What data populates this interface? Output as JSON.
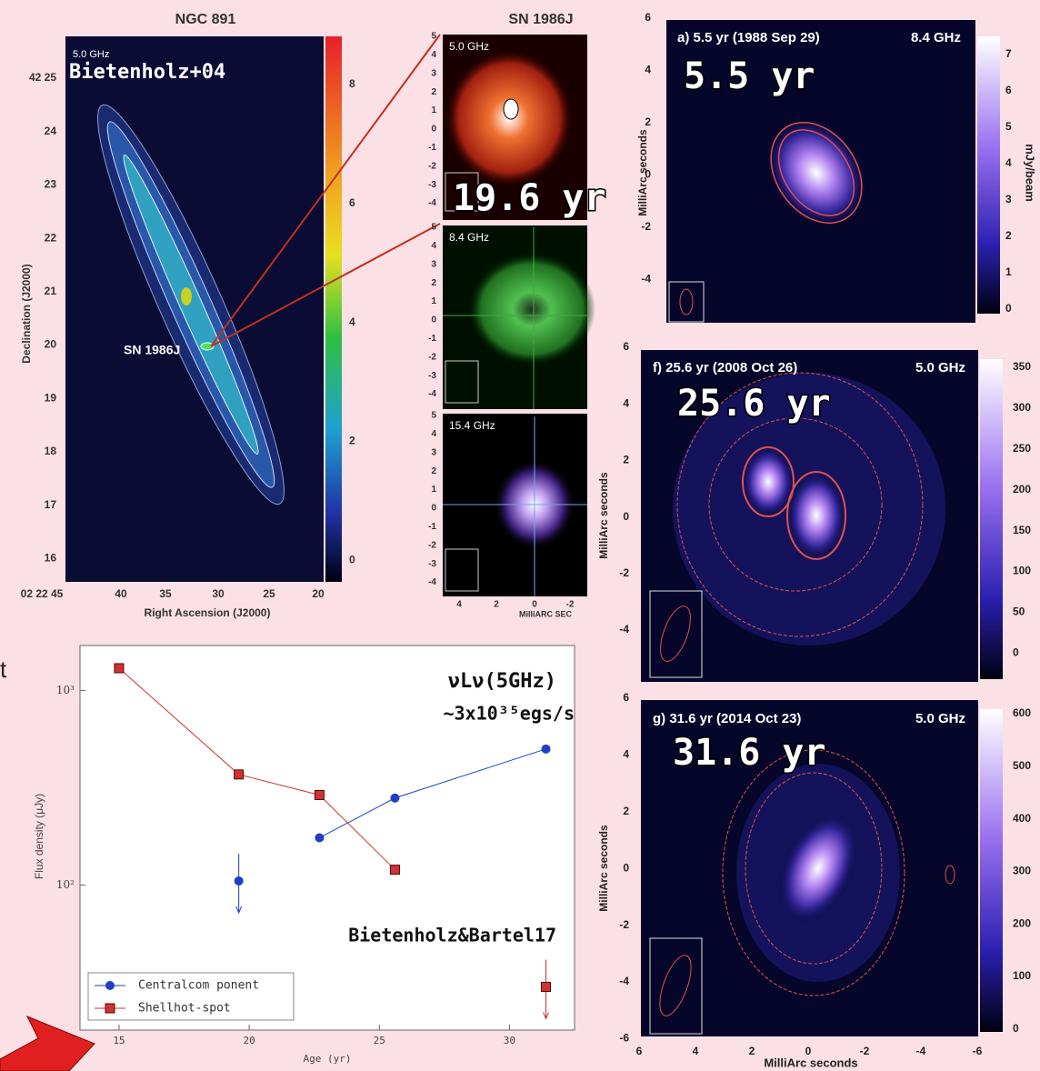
{
  "slide": {
    "stray_text": "t"
  },
  "ngc891": {
    "title": "NGC 891",
    "freq": "5.0 GHz",
    "credit": "Bietenholz+04",
    "sn_label": "SN 1986J",
    "dec_ticks": [
      "42 25",
      24,
      23,
      22,
      21,
      20,
      19,
      18,
      17,
      16
    ],
    "ra_ticks": [
      "02 22 45",
      40,
      35,
      30,
      25,
      20
    ],
    "xlabel": "Right Ascension (J2000)",
    "ylabel": "Declination (J2000)",
    "colorbar_ticks": [
      8,
      6,
      4,
      2,
      0
    ]
  },
  "sn1986j": {
    "title": "SN 1986J",
    "panels": [
      {
        "freq": "5.0 GHz"
      },
      {
        "freq": "8.4 GHz"
      },
      {
        "freq": "15.4 GHz"
      }
    ],
    "y_ticks": [
      5,
      4,
      3,
      2,
      1,
      0,
      -1,
      -2,
      -3,
      -4
    ],
    "x_ticks": [
      4,
      2,
      0,
      -2
    ],
    "xlabel": "MilliARC SEC",
    "age": "19.6 yr"
  },
  "epochs": [
    {
      "title": "a) 5.5 yr (1988 Sep 29)",
      "freq": "8.4 GHz",
      "age": "5.5 yr",
      "colorbar_label": "mJy/beam",
      "colorbar_ticks": [
        7,
        6,
        5,
        4,
        3,
        2,
        1,
        0
      ],
      "ylabel": "MilliArc seconds",
      "y_ticks": [
        6,
        4,
        2,
        0,
        -2,
        -4
      ]
    },
    {
      "title": "f) 25.6 yr (2008 Oct 26)",
      "freq": "5.0 GHz",
      "age": "25.6 yr",
      "colorbar_ticks": [
        350,
        300,
        250,
        200,
        150,
        100,
        50,
        0
      ],
      "ylabel": "MilliArc seconds",
      "y_ticks": [
        6,
        4,
        2,
        0,
        -2,
        -4
      ]
    },
    {
      "title": "g) 31.6 yr (2014 Oct 23)",
      "freq": "5.0 GHz",
      "age": "31.6 yr",
      "colorbar_ticks": [
        600,
        500,
        400,
        300,
        200,
        100,
        0
      ],
      "ylabel": "MilliArc seconds",
      "y_ticks": [
        6,
        4,
        2,
        0,
        -2,
        -4,
        -6
      ],
      "x_ticks": [
        6,
        4,
        2,
        0,
        -2,
        -4,
        -6
      ],
      "xlabel": "MilliArc seconds"
    }
  ],
  "chart_data": {
    "type": "line",
    "xlabel": "Age (yr)",
    "ylabel": "Flux density (μJy)",
    "annotations": [
      "νLν(5GHz)",
      "~3x10³⁵egs/s",
      "Bietenholz&Bartel17"
    ],
    "xlim": [
      13.5,
      32.5
    ],
    "xticks": [
      15,
      20,
      25,
      30
    ],
    "ylim": [
      18,
      1700
    ],
    "yscale": "log",
    "yticks": [
      {
        "value": 100,
        "label": "10²"
      },
      {
        "value": 1000,
        "label": "10³"
      }
    ],
    "legend": "lower left",
    "series": [
      {
        "name": "Centralcom ponent",
        "color": "#1f3fc4",
        "marker": "circle",
        "x": [
          19.6,
          22.7,
          25.6,
          31.4
        ],
        "values": [
          105,
          175,
          280,
          500
        ],
        "upper_limits": [
          true,
          false,
          false,
          false
        ]
      },
      {
        "name": "Shellhot-spot",
        "color": "#cc3333",
        "marker": "square",
        "x": [
          15.0,
          19.6,
          22.7,
          25.6,
          31.4
        ],
        "values": [
          1300,
          370,
          290,
          120,
          30
        ],
        "upper_limits": [
          false,
          false,
          false,
          false,
          true
        ]
      }
    ]
  }
}
